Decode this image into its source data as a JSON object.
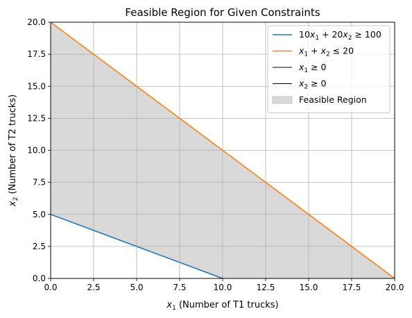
{
  "chart_data": {
    "type": "line",
    "title": "Feasible Region for Given Constraints",
    "xlabel": {
      "var": "x",
      "sub": "1",
      "rest": " (Number of T1 trucks)"
    },
    "ylabel": {
      "var": "x",
      "sub": "2",
      "rest": " (Number of T2 trucks)"
    },
    "xlim": [
      0,
      20
    ],
    "ylim": [
      0,
      20
    ],
    "xticks": [
      0,
      2.5,
      5,
      7.5,
      10,
      12.5,
      15,
      17.5,
      20
    ],
    "yticks": [
      0,
      2.5,
      5,
      7.5,
      10,
      12.5,
      15,
      17.5,
      20
    ],
    "xtick_labels": [
      "0.0",
      "2.5",
      "5.0",
      "7.5",
      "10.0",
      "12.5",
      "15.0",
      "17.5",
      "20.0"
    ],
    "ytick_labels": [
      "0.0",
      "2.5",
      "5.0",
      "7.5",
      "10.0",
      "12.5",
      "15.0",
      "17.5",
      "20.0"
    ],
    "grid": true,
    "legend_position": "top-right",
    "series": [
      {
        "name": "10x1 + 20x2 ≥ 100",
        "label_parts": [
          {
            "t": "10"
          },
          {
            "t": "x",
            "i": true
          },
          {
            "t": "1",
            "sub": true
          },
          {
            "t": " + 20"
          },
          {
            "t": "x",
            "i": true
          },
          {
            "t": "2",
            "sub": true
          },
          {
            "t": " ≥ 100"
          }
        ],
        "color": "#1f77b4",
        "x": [
          0,
          10
        ],
        "y": [
          5,
          0
        ]
      },
      {
        "name": "x1 + x2 ≤ 20",
        "label_parts": [
          {
            "t": "x",
            "i": true
          },
          {
            "t": "1",
            "sub": true
          },
          {
            "t": " + "
          },
          {
            "t": "x",
            "i": true
          },
          {
            "t": "2",
            "sub": true
          },
          {
            "t": " ≤ 20"
          }
        ],
        "color": "#ff7f0e",
        "x": [
          0,
          20
        ],
        "y": [
          20,
          0
        ]
      },
      {
        "name": "x1 ≥ 0",
        "label_parts": [
          {
            "t": "x",
            "i": true
          },
          {
            "t": "1",
            "sub": true
          },
          {
            "t": " ≥ 0"
          }
        ],
        "color": "#000000",
        "x": [
          0,
          0
        ],
        "y": [
          0,
          20
        ]
      },
      {
        "name": "x2 ≥ 0",
        "label_parts": [
          {
            "t": "x",
            "i": true
          },
          {
            "t": "2",
            "sub": true
          },
          {
            "t": " ≥ 0"
          }
        ],
        "color": "#000000",
        "x": [
          0,
          20
        ],
        "y": [
          0,
          0
        ]
      }
    ],
    "fill": {
      "name": "Feasible Region",
      "color": "#d9d9d9",
      "polygon": [
        [
          0,
          5
        ],
        [
          10,
          0
        ],
        [
          20,
          0
        ],
        [
          0,
          20
        ]
      ]
    }
  }
}
